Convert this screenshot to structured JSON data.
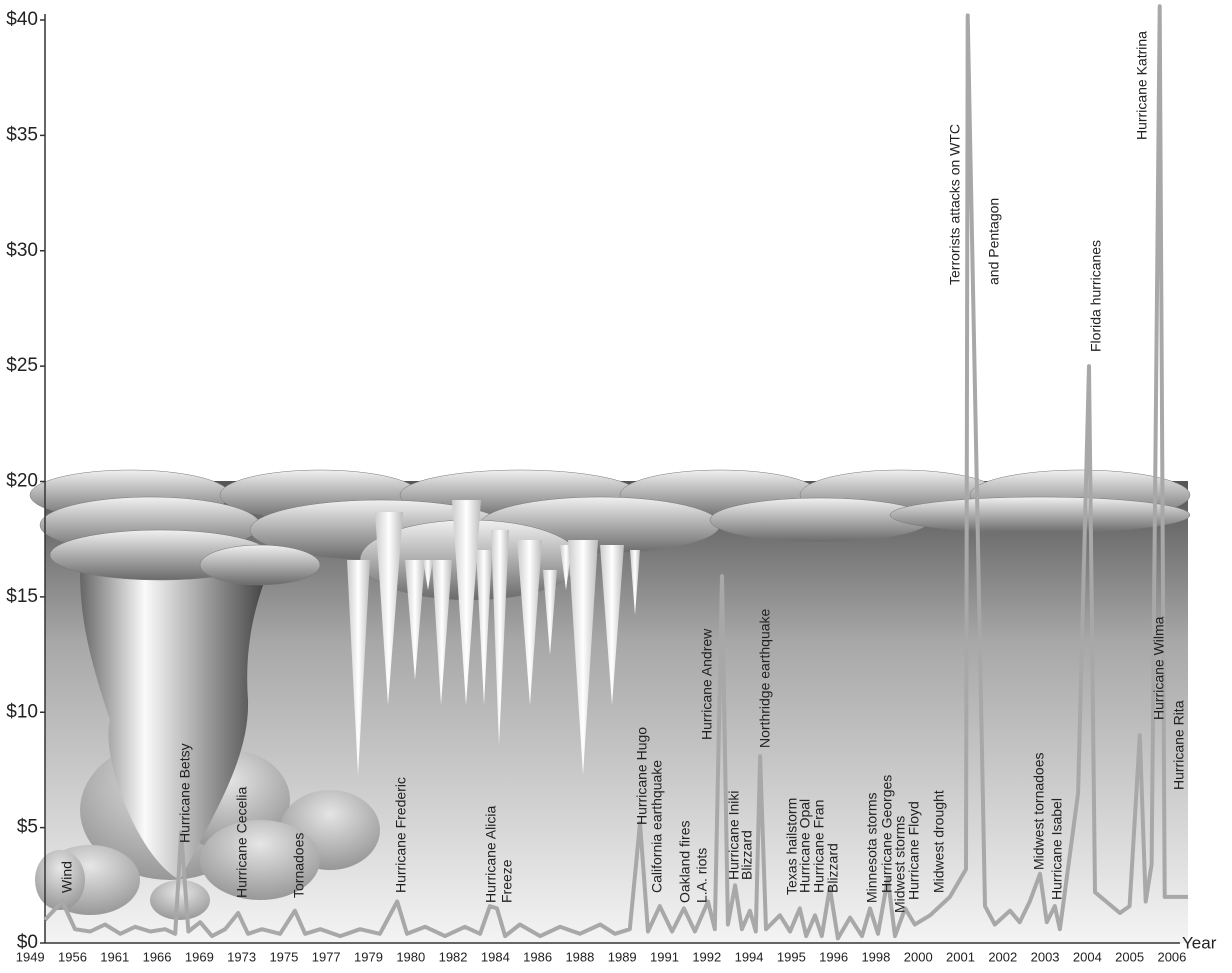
{
  "chart_data": {
    "type": "line",
    "x_title": "Year",
    "xlim": [
      0.35,
      27.38
    ],
    "xticks": [
      {
        "value": 0,
        "label": "1949"
      },
      {
        "value": 1,
        "label": "1956"
      },
      {
        "value": 2,
        "label": "1961"
      },
      {
        "value": 3,
        "label": "1966"
      },
      {
        "value": 4,
        "label": "1969"
      },
      {
        "value": 5,
        "label": "1973"
      },
      {
        "value": 6,
        "label": "1975"
      },
      {
        "value": 7,
        "label": "1977"
      },
      {
        "value": 8,
        "label": "1979"
      },
      {
        "value": 9,
        "label": "1980"
      },
      {
        "value": 10,
        "label": "1982"
      },
      {
        "value": 11,
        "label": "1984"
      },
      {
        "value": 12,
        "label": "1986"
      },
      {
        "value": 13,
        "label": "1988"
      },
      {
        "value": 14,
        "label": "1989"
      },
      {
        "value": 15,
        "label": "1991"
      },
      {
        "value": 16,
        "label": "1992"
      },
      {
        "value": 17,
        "label": "1994"
      },
      {
        "value": 18,
        "label": "1995"
      },
      {
        "value": 19,
        "label": "1996"
      },
      {
        "value": 20,
        "label": "1998"
      },
      {
        "value": 21,
        "label": "2000"
      },
      {
        "value": 22,
        "label": "2001"
      },
      {
        "value": 23,
        "label": "2002"
      },
      {
        "value": 24,
        "label": "2003"
      },
      {
        "value": 25,
        "label": "2004"
      },
      {
        "value": 26,
        "label": "2005"
      },
      {
        "value": 27,
        "label": "2006"
      }
    ],
    "ylim": [
      0,
      40
    ],
    "yticks": [
      {
        "value": 0,
        "label": "$0"
      },
      {
        "value": 5,
        "label": "$5"
      },
      {
        "value": 10,
        "label": "$10"
      },
      {
        "value": 15,
        "label": "$15"
      },
      {
        "value": 20,
        "label": "$20"
      },
      {
        "value": 25,
        "label": "$25"
      },
      {
        "value": 30,
        "label": "$30"
      },
      {
        "value": 35,
        "label": "$35"
      },
      {
        "value": 40,
        "label": "$40"
      }
    ],
    "color": "#a8a8a8",
    "x": [
      0.35,
      0.76,
      1.06,
      1.42,
      1.77,
      2.13,
      2.48,
      2.84,
      3.19,
      3.43,
      3.57,
      3.74,
      4.02,
      4.3,
      4.61,
      4.92,
      5.15,
      5.48,
      5.91,
      6.26,
      6.5,
      6.86,
      7.33,
      7.8,
      8.27,
      8.68,
      8.91,
      9.34,
      9.81,
      10.28,
      10.64,
      10.87,
      11.04,
      11.23,
      11.58,
      12.06,
      12.53,
      13.0,
      13.48,
      13.83,
      14.18,
      14.42,
      14.61,
      14.89,
      15.18,
      15.46,
      15.72,
      16.03,
      16.19,
      16.36,
      16.5,
      16.67,
      16.83,
      17.02,
      17.16,
      17.26,
      17.4,
      17.73,
      17.97,
      18.2,
      18.35,
      18.56,
      18.72,
      18.91,
      19.1,
      19.39,
      19.67,
      19.86,
      20.05,
      20.28,
      20.45,
      20.69,
      20.92,
      21.28,
      21.75,
      22.13,
      22.17,
      22.58,
      22.81,
      23.17,
      23.4,
      23.64,
      23.88,
      24.04,
      24.23,
      24.35,
      24.78,
      25.04,
      25.18,
      25.77,
      26.0,
      26.24,
      26.38,
      26.52,
      26.71,
      26.83,
      27.38
    ],
    "values": [
      1.0,
      1.8,
      0.6,
      0.5,
      0.8,
      0.4,
      0.7,
      0.5,
      0.6,
      0.4,
      4.8,
      0.5,
      0.9,
      0.3,
      0.6,
      1.3,
      0.4,
      0.6,
      0.4,
      1.4,
      0.4,
      0.6,
      0.3,
      0.6,
      0.4,
      1.8,
      0.4,
      0.7,
      0.3,
      0.7,
      0.4,
      1.6,
      1.5,
      0.3,
      0.8,
      0.3,
      0.7,
      0.4,
      0.8,
      0.4,
      0.6,
      5.2,
      0.5,
      1.6,
      0.5,
      1.5,
      0.5,
      1.8,
      0.6,
      15.9,
      0.8,
      2.5,
      0.6,
      1.4,
      0.5,
      8.1,
      0.6,
      1.2,
      0.5,
      1.5,
      0.3,
      1.2,
      0.3,
      2.4,
      0.2,
      1.1,
      0.3,
      1.5,
      0.4,
      2.8,
      0.3,
      1.5,
      0.8,
      1.2,
      2.0,
      3.2,
      40.2,
      1.6,
      0.8,
      1.4,
      0.9,
      1.8,
      3.0,
      0.9,
      1.6,
      0.6,
      6.5,
      25.0,
      2.2,
      1.3,
      1.6,
      9.0,
      1.8,
      3.4,
      40.6,
      2.0,
      2.0
    ],
    "annotations": [
      "Wind",
      "Hurricane Betsy",
      "Hurricane Cecelia",
      "Tornadoes",
      "Hurricane Frederic",
      "Hurricane Alicia",
      "Freeze",
      "Hurricane Hugo",
      "California earthquake",
      "Oakland fires",
      "L.A. riots",
      "Hurricane Andrew",
      "Hurricane Iniki",
      "Blizzard",
      "Northridge earthquake",
      "Texas hailstorm",
      "Hurricane Opal",
      "Hurricane Fran",
      "Blizzard",
      "Minnesota storms",
      "Hurricane Georges",
      "Midwest storms",
      "Hurricane Floyd",
      "Midwest drought",
      "Terrorists attacks on WTC",
      "and Pentagon",
      "Midwest tornadoes",
      "Hurricane Isabel",
      "Florida hurricanes",
      "Hurricane Katrina",
      "Hurricane Wilma",
      "Hurricane Rita"
    ]
  }
}
